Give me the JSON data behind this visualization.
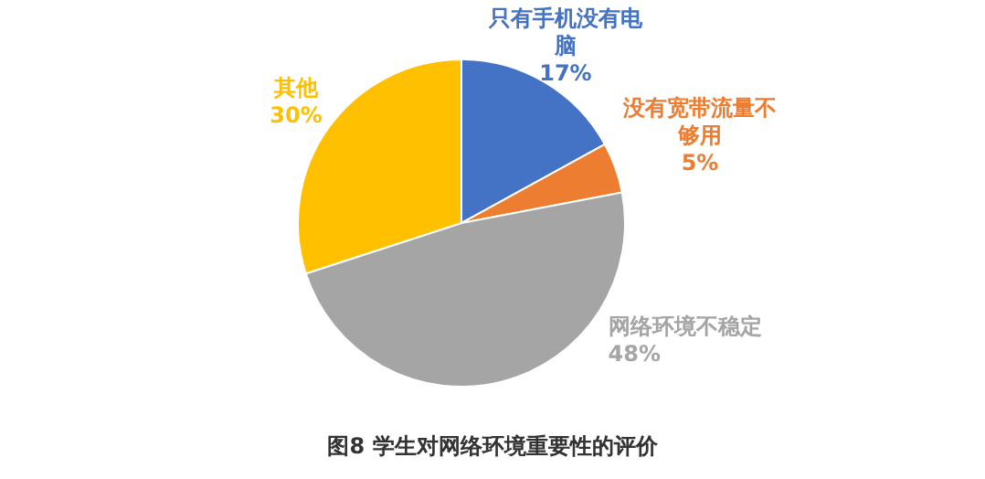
{
  "chart_data": {
    "type": "pie",
    "title": "图8 学生对网络环境重要性的评价",
    "categories": [
      "只有手机没有电脑",
      "没有宽带流量不够用",
      "网络环境不稳定",
      "其他"
    ],
    "values": [
      17,
      5,
      48,
      30
    ],
    "value_labels": [
      "17%",
      "5%",
      "48%",
      "30%"
    ],
    "colors": [
      "#4472c4",
      "#ed7d31",
      "#a5a5a5",
      "#ffc000"
    ],
    "legend": false
  }
}
